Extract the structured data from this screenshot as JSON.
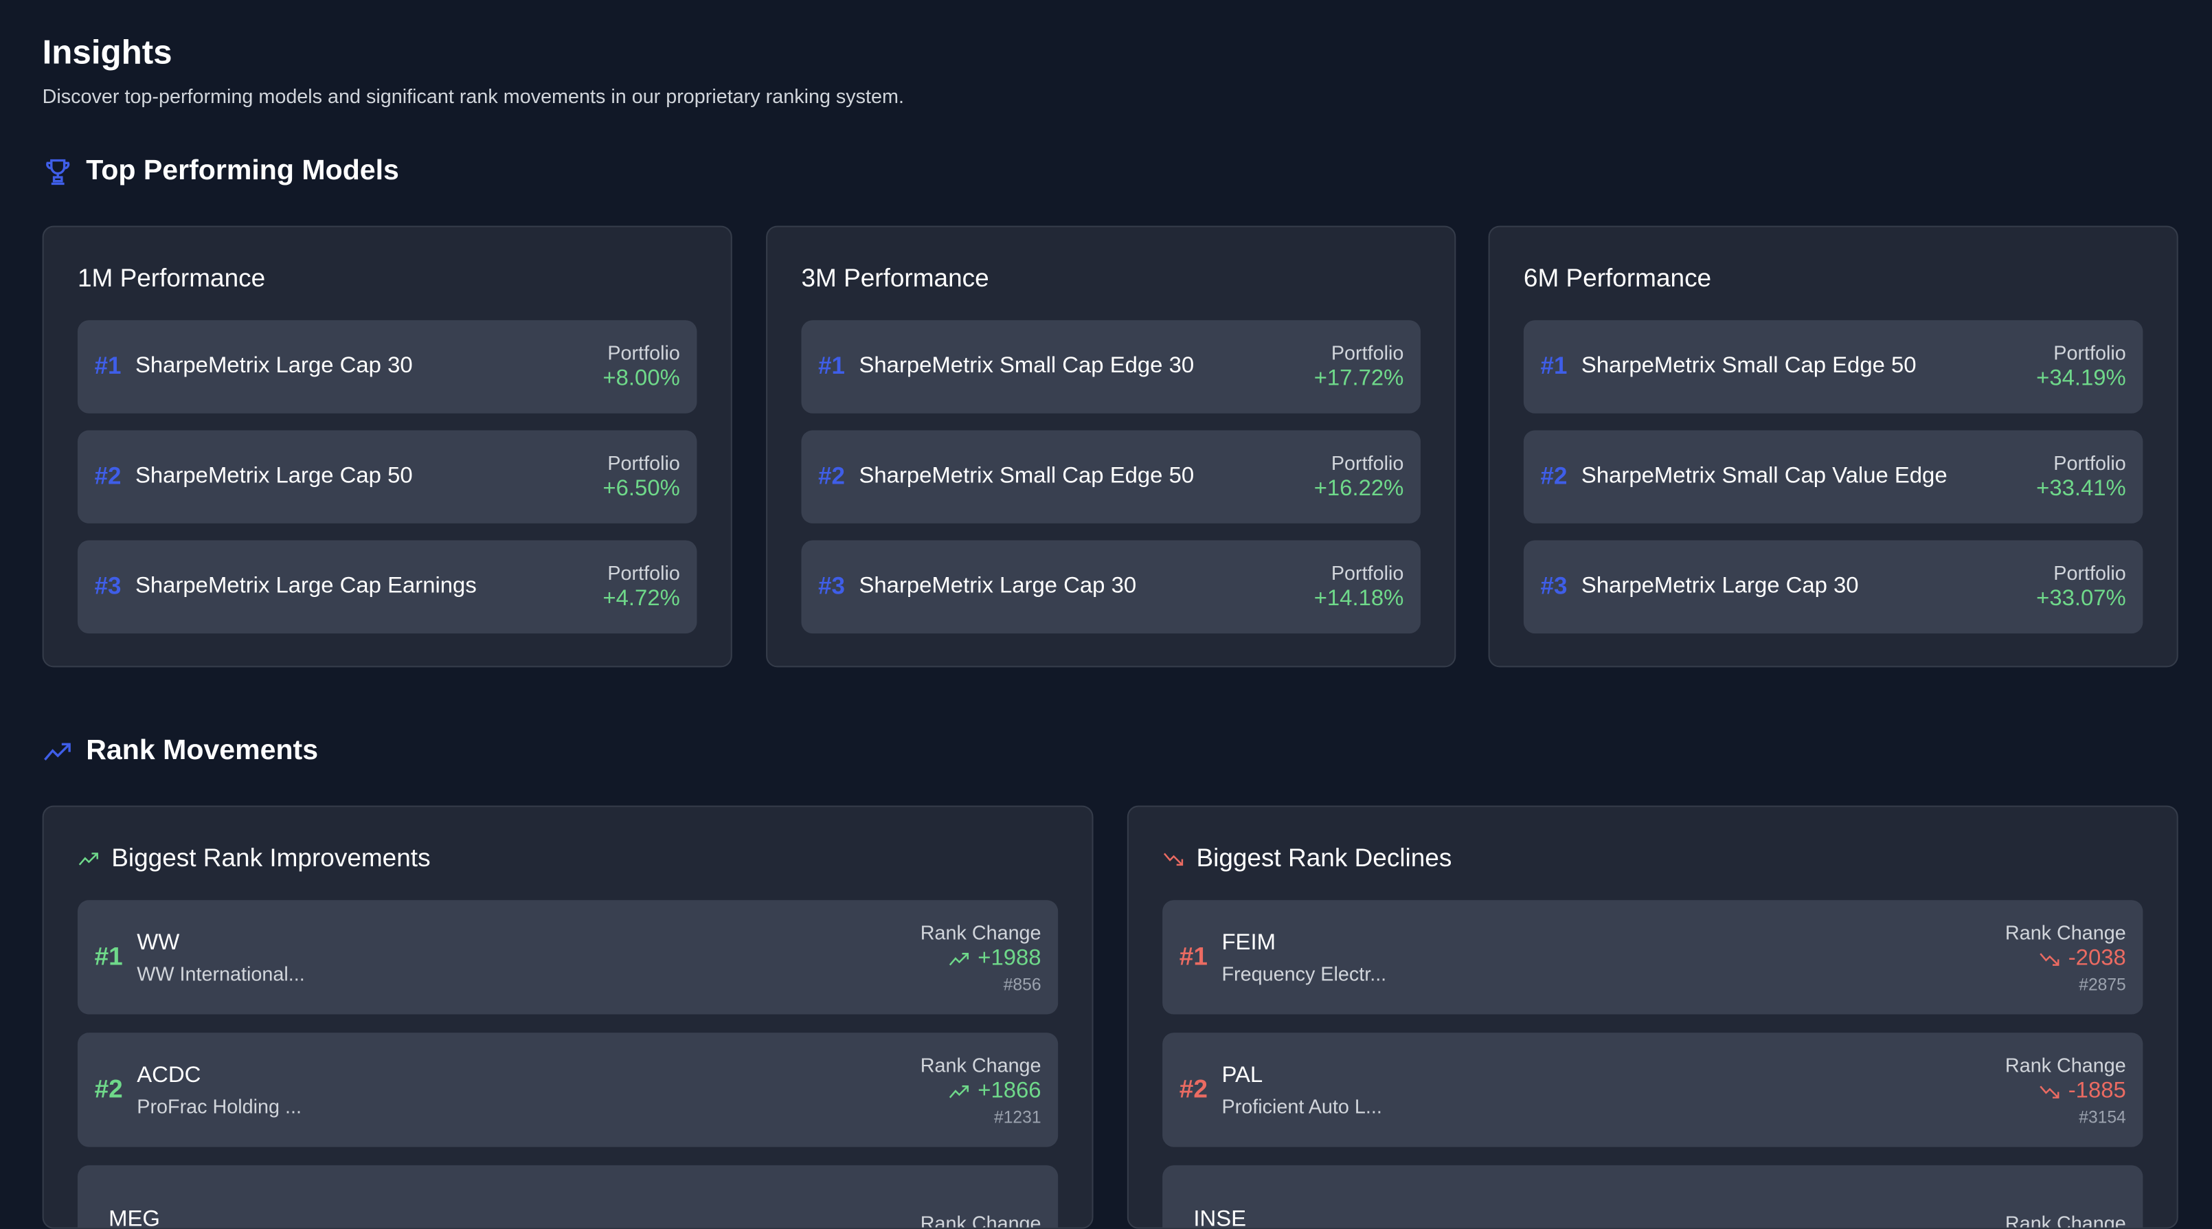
{
  "page": {
    "title": "Insights",
    "subtitle": "Discover top-performing models and significant rank movements in our proprietary ranking system."
  },
  "colors": {
    "background": "#111827",
    "card": "#222836",
    "item": "#394050",
    "accent_blue": "#3f5ee8",
    "positive": "#6fd98a",
    "negative": "#eb6b62"
  },
  "top_models": {
    "heading": "Top Performing Models",
    "icon": "trophy-icon",
    "cards": [
      {
        "title": "1M Performance",
        "items": [
          {
            "rank": "#1",
            "name": "SharpeMetrix Large Cap 30",
            "label": "Portfolio",
            "value": "+8.00%"
          },
          {
            "rank": "#2",
            "name": "SharpeMetrix Large Cap 50",
            "label": "Portfolio",
            "value": "+6.50%"
          },
          {
            "rank": "#3",
            "name": "SharpeMetrix Large Cap Earnings",
            "label": "Portfolio",
            "value": "+4.72%"
          }
        ]
      },
      {
        "title": "3M Performance",
        "items": [
          {
            "rank": "#1",
            "name": "SharpeMetrix Small Cap Edge 30",
            "label": "Portfolio",
            "value": "+17.72%"
          },
          {
            "rank": "#2",
            "name": "SharpeMetrix Small Cap Edge 50",
            "label": "Portfolio",
            "value": "+16.22%"
          },
          {
            "rank": "#3",
            "name": "SharpeMetrix Large Cap 30",
            "label": "Portfolio",
            "value": "+14.18%"
          }
        ]
      },
      {
        "title": "6M Performance",
        "items": [
          {
            "rank": "#1",
            "name": "SharpeMetrix Small Cap Edge 50",
            "label": "Portfolio",
            "value": "+34.19%"
          },
          {
            "rank": "#2",
            "name": "SharpeMetrix Small Cap Value Edge",
            "label": "Portfolio",
            "value": "+33.41%"
          },
          {
            "rank": "#3",
            "name": "SharpeMetrix Large Cap 30",
            "label": "Portfolio",
            "value": "+33.07%"
          }
        ]
      }
    ]
  },
  "rank_movements": {
    "heading": "Rank Movements",
    "icon": "trending-up-icon",
    "improvements": {
      "title": "Biggest Rank Improvements",
      "icon": "trending-up-icon",
      "items": [
        {
          "rank": "#1",
          "ticker": "WW",
          "company": "WW International...",
          "label": "Rank Change",
          "change": "+1988",
          "current": "#856"
        },
        {
          "rank": "#2",
          "ticker": "ACDC",
          "company": "ProFrac Holding ...",
          "label": "Rank Change",
          "change": "+1866",
          "current": "#1231"
        },
        {
          "rank": "",
          "ticker": "MEG",
          "company": "",
          "label": "Rank Change",
          "change": "",
          "current": ""
        }
      ]
    },
    "declines": {
      "title": "Biggest Rank Declines",
      "icon": "trending-down-icon",
      "items": [
        {
          "rank": "#1",
          "ticker": "FEIM",
          "company": "Frequency Electr...",
          "label": "Rank Change",
          "change": "-2038",
          "current": "#2875"
        },
        {
          "rank": "#2",
          "ticker": "PAL",
          "company": "Proficient Auto L...",
          "label": "Rank Change",
          "change": "-1885",
          "current": "#3154"
        },
        {
          "rank": "",
          "ticker": "INSE",
          "company": "",
          "label": "Rank Change",
          "change": "",
          "current": ""
        }
      ]
    }
  }
}
